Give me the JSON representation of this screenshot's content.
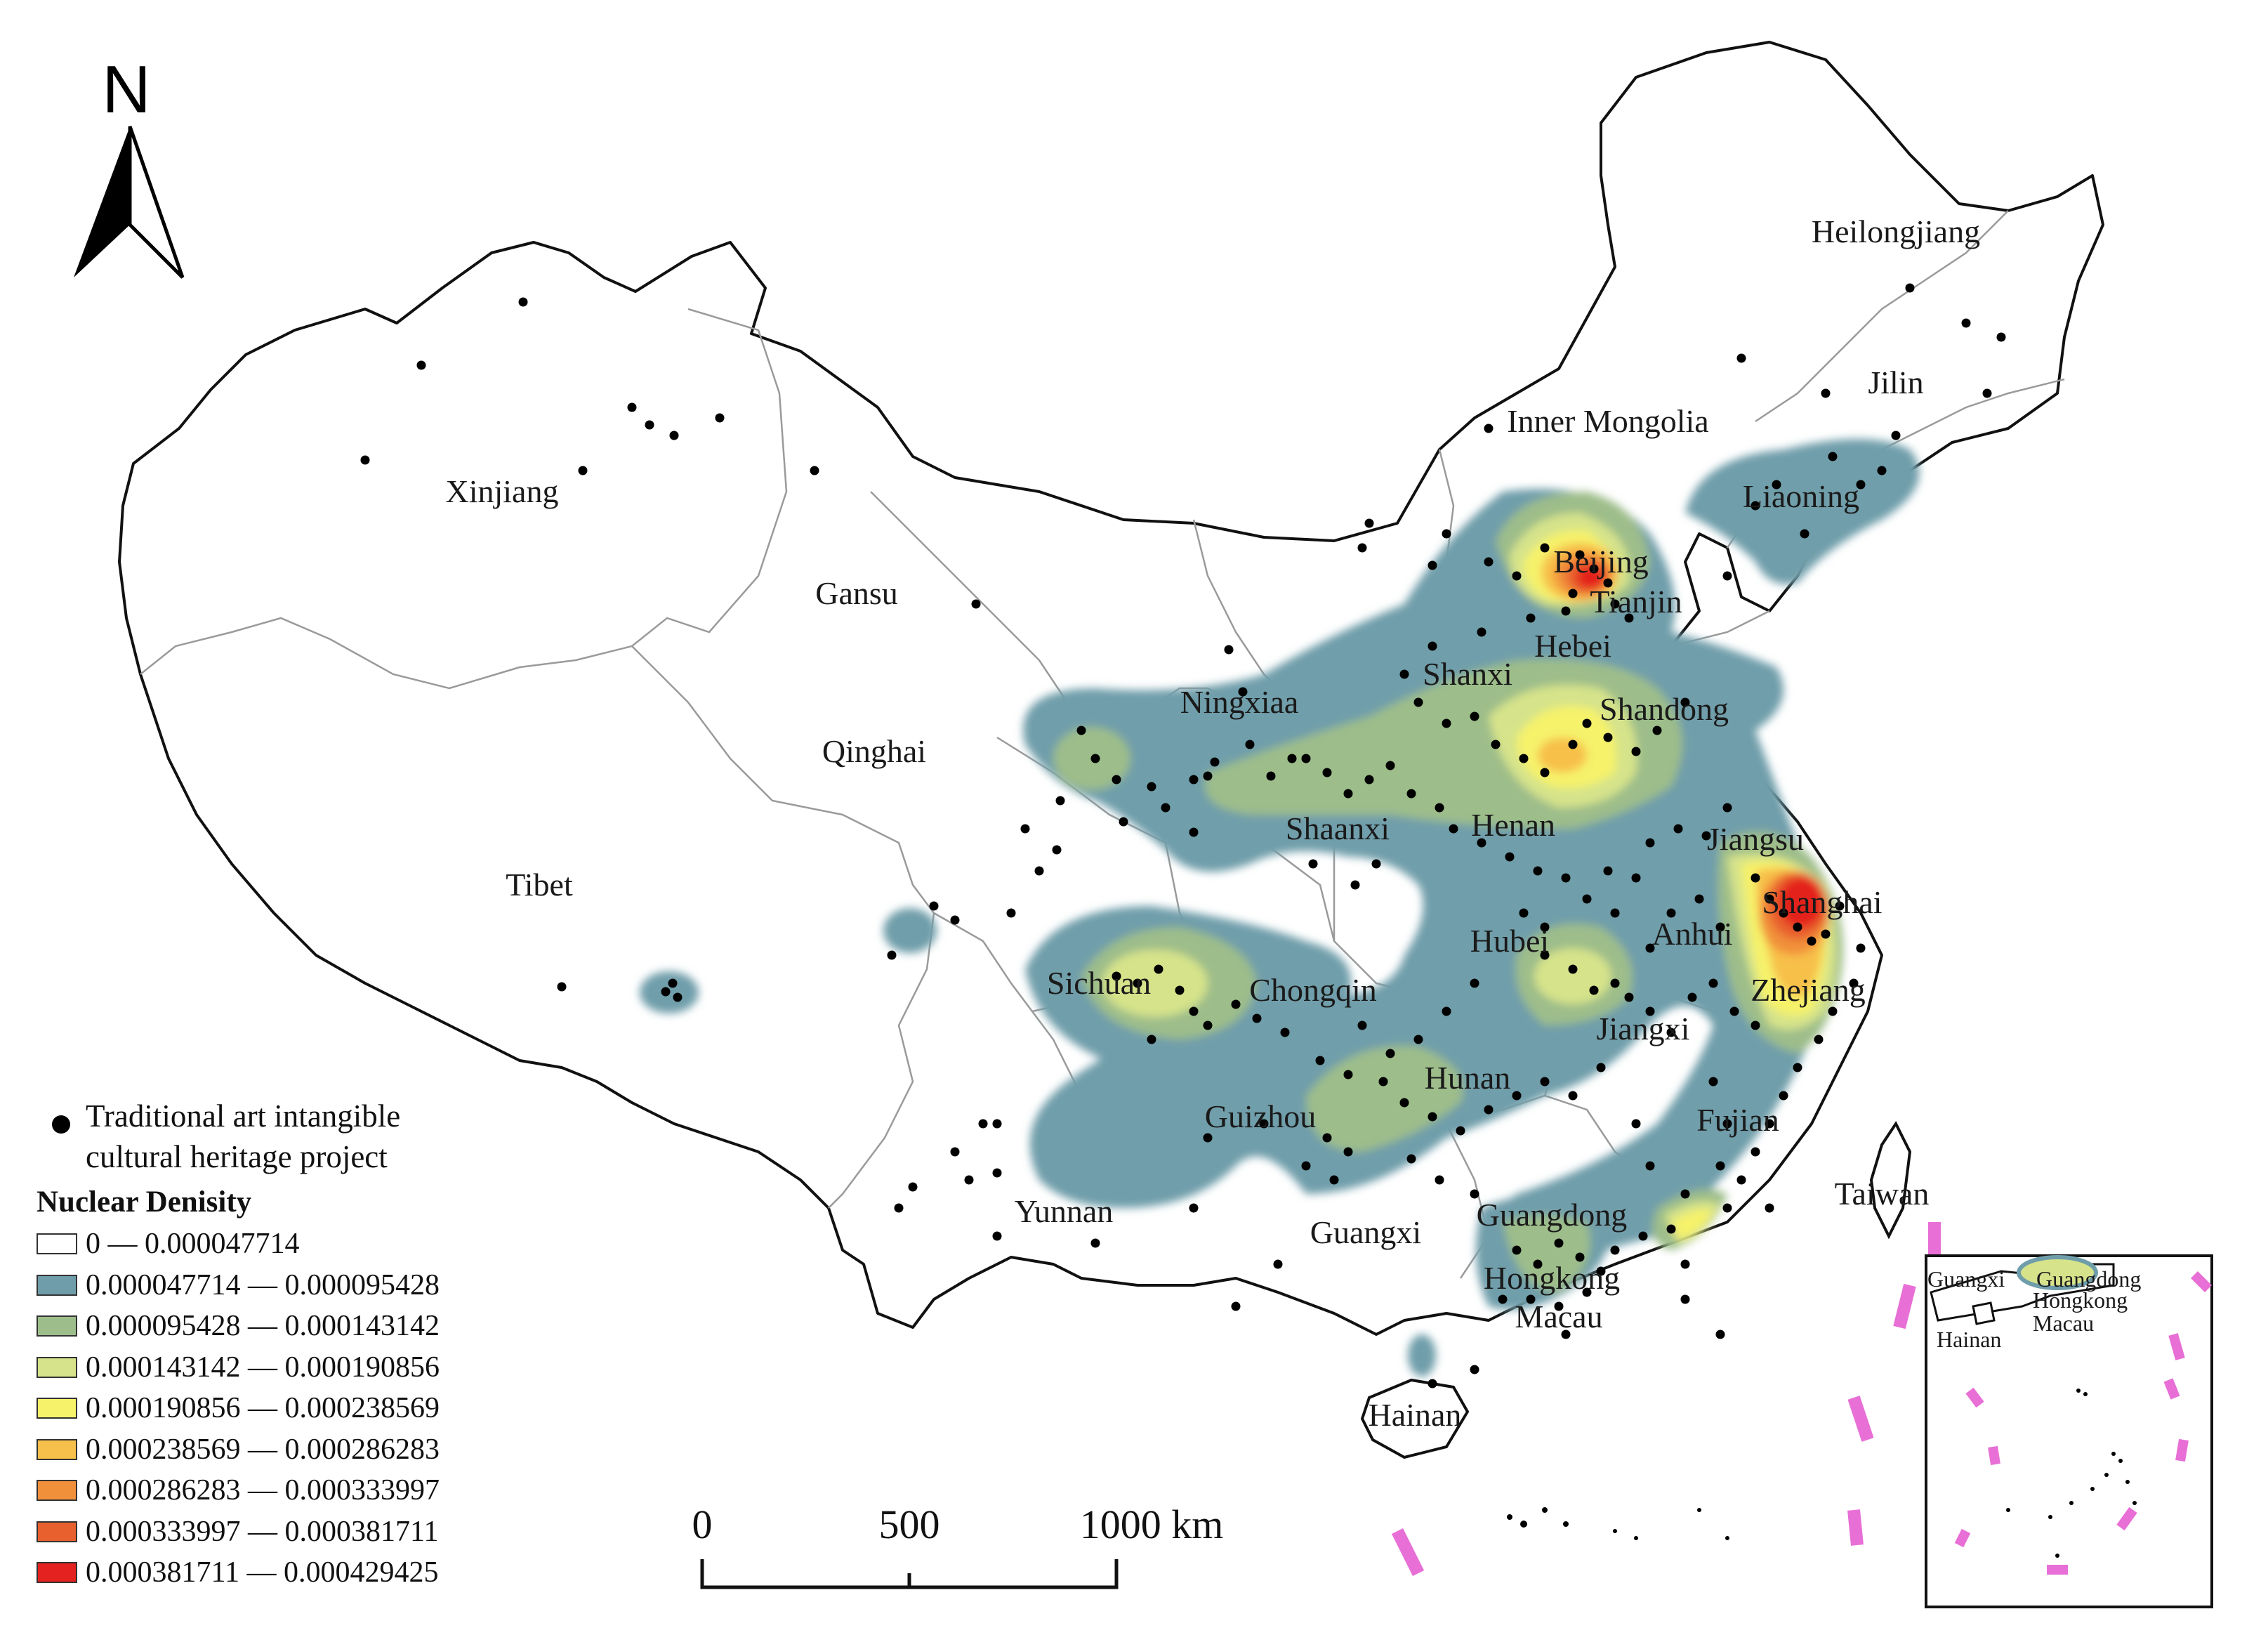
{
  "north": "N",
  "provinces": [
    {
      "name": "Heilongjiang"
    },
    {
      "name": "Jilin"
    },
    {
      "name": "Inner Mongolia"
    },
    {
      "name": "Liaoning"
    },
    {
      "name": "Xinjiang"
    },
    {
      "name": "Beijing"
    },
    {
      "name": "Tianjin"
    },
    {
      "name": "Gansu"
    },
    {
      "name": "Hebei"
    },
    {
      "name": "Shanxi"
    },
    {
      "name": "Ningxiaa"
    },
    {
      "name": "Shandong"
    },
    {
      "name": "Qinghai"
    },
    {
      "name": "Shaanxi"
    },
    {
      "name": "Henan"
    },
    {
      "name": "Jiangsu"
    },
    {
      "name": "Tibet"
    },
    {
      "name": "Shanghai"
    },
    {
      "name": "Hubei"
    },
    {
      "name": "Anhui"
    },
    {
      "name": "Sichuan"
    },
    {
      "name": "Chongqin"
    },
    {
      "name": "Zhejiang"
    },
    {
      "name": "Jiangxi"
    },
    {
      "name": "Hunan"
    },
    {
      "name": "Guizhou"
    },
    {
      "name": "Fujian"
    },
    {
      "name": "Taiwan"
    },
    {
      "name": "Yunnan"
    },
    {
      "name": "Guangxi"
    },
    {
      "name": "Guangdong"
    },
    {
      "name": "Hongkong"
    },
    {
      "name": "Macau"
    },
    {
      "name": "Hainan"
    }
  ],
  "inset_labels": {
    "guangxi": "Guangxi",
    "guangdong": "Guangdong",
    "hongkong": "Hongkong",
    "macau": "Macau",
    "hainan": "Hainan"
  },
  "scale": {
    "t0": "0",
    "t1": "500",
    "t2": "1000 km"
  },
  "legend": {
    "point_label_line1": "Traditional art intangible",
    "point_label_line2": "cultural heritage project",
    "title": "Nuclear Denisity",
    "classes": [
      {
        "label": "0 — 0.000047714",
        "color": "#ffffff"
      },
      {
        "label": "0.000047714 — 0.000095428",
        "color": "#6f9eaa"
      },
      {
        "label": "0.000095428 — 0.000143142",
        "color": "#9dbd8a"
      },
      {
        "label": "0.000143142 — 0.000190856",
        "color": "#d6e38a"
      },
      {
        "label": "0.000190856 — 0.000238569",
        "color": "#f6f26a"
      },
      {
        "label": "0.000238569 — 0.000286283",
        "color": "#f7c04a"
      },
      {
        "label": "0.000286283 — 0.000333997",
        "color": "#f1903a"
      },
      {
        "label": "0.000333997 — 0.000381711",
        "color": "#e8602d"
      },
      {
        "label": "0.000381711 — 0.000429425",
        "color": "#e4221f"
      }
    ]
  },
  "colors": {
    "dashes": "#e86fd6",
    "border": "#111111",
    "province_line": "#9a9a9a",
    "points": "#000000"
  }
}
